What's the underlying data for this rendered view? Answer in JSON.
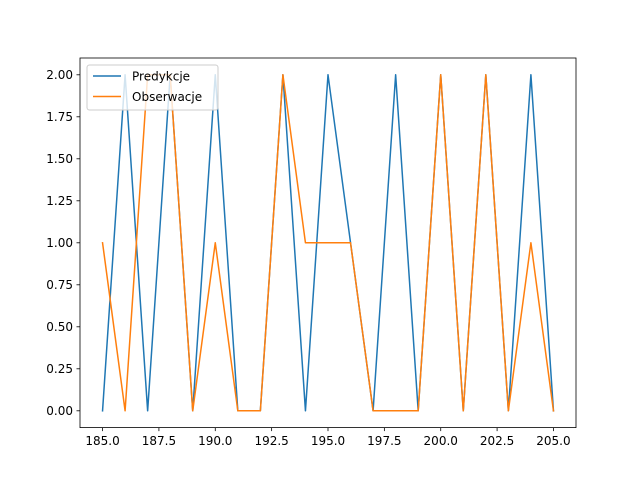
{
  "chart_data": {
    "type": "line",
    "title": "",
    "xlabel": "",
    "ylabel": "",
    "xlim": [
      184,
      206
    ],
    "ylim": [
      -0.1,
      2.1
    ],
    "x_ticks": [
      185.0,
      187.5,
      190.0,
      192.5,
      195.0,
      197.5,
      200.0,
      202.5,
      205.0
    ],
    "x_tick_labels": [
      "185.0",
      "187.5",
      "190.0",
      "192.5",
      "195.0",
      "197.5",
      "200.0",
      "202.5",
      "205.0"
    ],
    "y_ticks": [
      0.0,
      0.25,
      0.5,
      0.75,
      1.0,
      1.25,
      1.5,
      1.75,
      2.0
    ],
    "y_tick_labels": [
      "0.00",
      "0.25",
      "0.50",
      "0.75",
      "1.00",
      "1.25",
      "1.50",
      "1.75",
      "2.00"
    ],
    "grid": false,
    "legend_position": "top-left",
    "x": [
      185,
      186,
      187,
      188,
      189,
      190,
      191,
      192,
      193,
      194,
      195,
      196,
      197,
      198,
      199,
      200,
      201,
      202,
      203,
      204,
      205
    ],
    "series": [
      {
        "name": "Predykcje",
        "color": "#1f77b4",
        "values": [
          0,
          2,
          0,
          2,
          0,
          2,
          0,
          0,
          2,
          0,
          2,
          1,
          0,
          2,
          0,
          2,
          0,
          2,
          0,
          2,
          0
        ]
      },
      {
        "name": "Obserwacje",
        "color": "#ff7f0e",
        "values": [
          1,
          0,
          2,
          2,
          0,
          1,
          0,
          0,
          2,
          1,
          1,
          1,
          0,
          0,
          0,
          2,
          0,
          2,
          0,
          1,
          0
        ]
      }
    ]
  }
}
